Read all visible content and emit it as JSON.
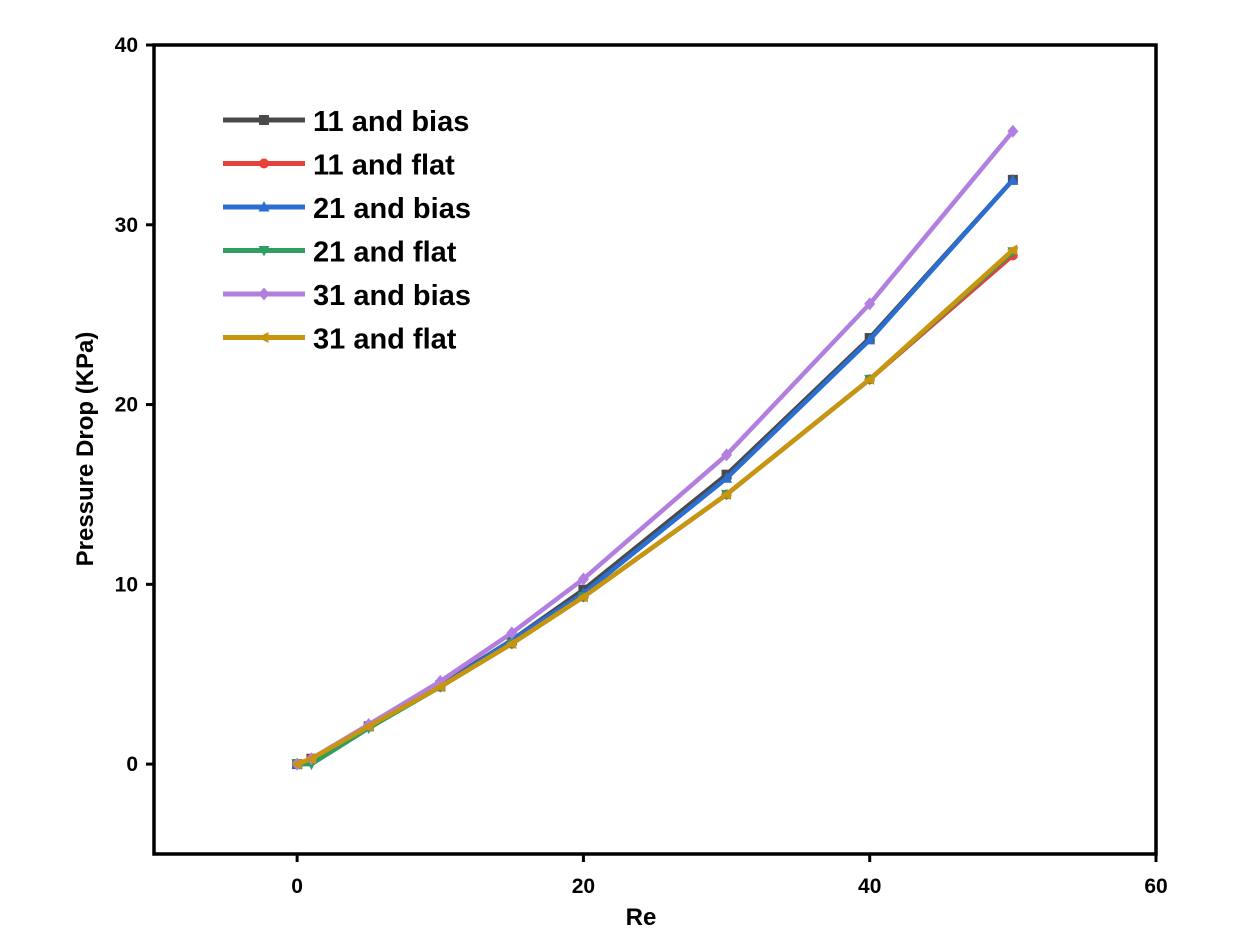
{
  "chart_data": {
    "type": "line",
    "title": "",
    "xlabel": "Re",
    "ylabel": "Pressure Drop (KPa)",
    "xlim": [
      -10,
      60
    ],
    "ylim": [
      -5,
      40
    ],
    "xticks": [
      0,
      20,
      40,
      60
    ],
    "yticks": [
      0,
      10,
      20,
      30,
      40
    ],
    "grid": false,
    "legend_position": "top-left",
    "x": [
      0,
      1,
      5,
      10,
      15,
      20,
      30,
      40,
      50
    ],
    "series": [
      {
        "name": "11 and bias",
        "color": "#4a4a4a",
        "marker": "square",
        "values": [
          0,
          0.3,
          2.1,
          4.4,
          6.9,
          9.7,
          16.1,
          23.7,
          32.5
        ]
      },
      {
        "name": "11 and flat",
        "color": "#e8403a",
        "marker": "circle",
        "values": [
          0,
          0.3,
          2.1,
          4.3,
          6.7,
          9.3,
          15.0,
          21.4,
          28.3
        ]
      },
      {
        "name": "21 and bias",
        "color": "#2a6ed1",
        "marker": "triangle-up",
        "values": [
          0,
          0.3,
          2.1,
          4.3,
          6.9,
          9.5,
          15.9,
          23.6,
          32.5
        ]
      },
      {
        "name": "21 and flat",
        "color": "#2f9e5e",
        "marker": "triangle-down",
        "values": [
          0,
          0.0,
          2.0,
          4.3,
          6.7,
          9.3,
          15.0,
          21.4,
          28.5
        ]
      },
      {
        "name": "31 and bias",
        "color": "#b27fe0",
        "marker": "diamond",
        "values": [
          0,
          0.3,
          2.2,
          4.6,
          7.3,
          10.3,
          17.2,
          25.6,
          35.2
        ]
      },
      {
        "name": "31 and flat",
        "color": "#c9950e",
        "marker": "triangle-left",
        "values": [
          0,
          0.3,
          2.1,
          4.3,
          6.7,
          9.3,
          15.0,
          21.4,
          28.6
        ]
      }
    ]
  }
}
